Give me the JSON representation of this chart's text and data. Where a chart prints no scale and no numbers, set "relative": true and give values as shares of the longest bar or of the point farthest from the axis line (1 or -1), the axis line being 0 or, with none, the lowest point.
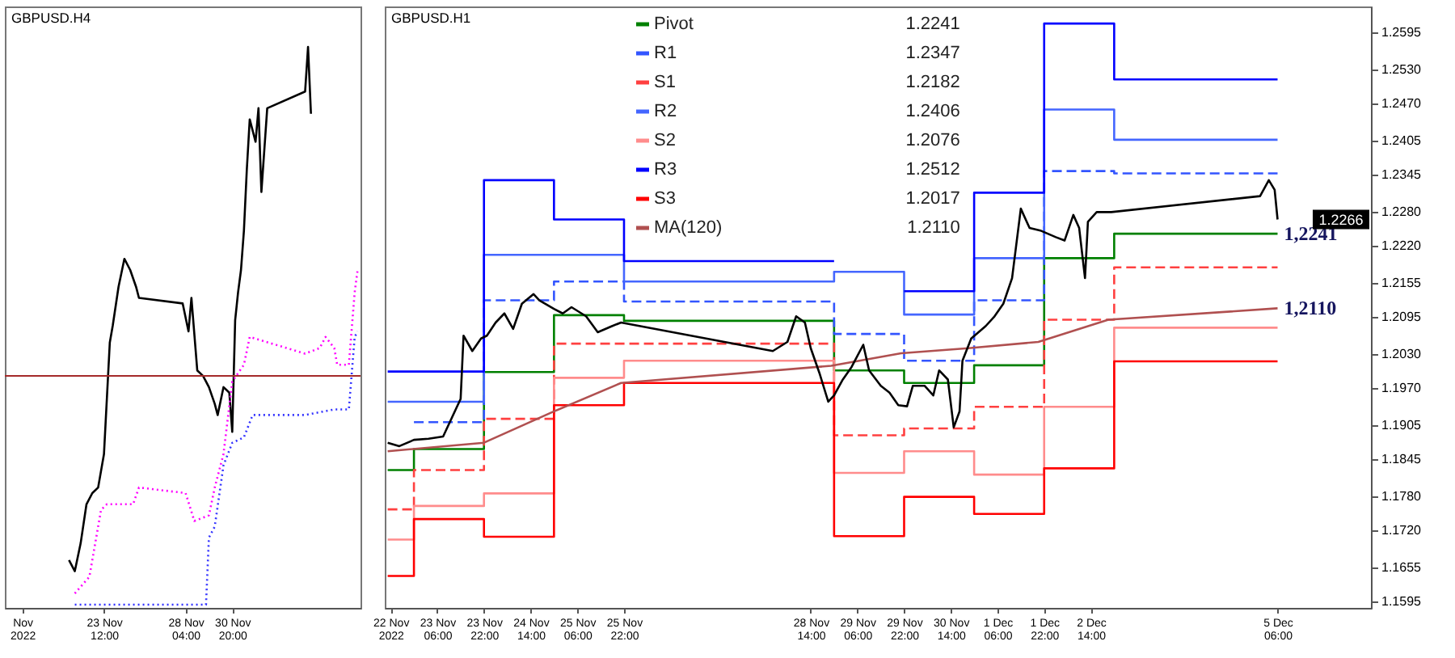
{
  "chart_data": [
    {
      "type": "line",
      "title": "GBPUSD.H4",
      "relative": true,
      "xlim": [
        "2022-11-17T20:00",
        "2022-12-08T04:00"
      ],
      "xticks": [
        {
          "value": "2022-11-18T20:00",
          "label": "Nov 2022"
        },
        {
          "value": "2022-11-23T12:00",
          "label": "23 Nov 12:00"
        },
        {
          "value": "2022-11-28T04:00",
          "label": "28 Nov 04:00"
        },
        {
          "value": "2022-11-30T20:00",
          "label": "30 Nov 20:00"
        }
      ],
      "tick_labels": "x",
      "ref_lines": [
        {
          "axis": "y",
          "value": 0.41,
          "color": "#a52a2a"
        }
      ],
      "series": [
        {
          "color": "#000000",
          "x": [
            "2022-11-21T12:00",
            "2022-11-21T20:00",
            "2022-11-22T04:00",
            "2022-11-22T12:00",
            "2022-11-22T20:00",
            "2022-11-23T04:00",
            "2022-11-23T12:00",
            "2022-11-23T16:00",
            "2022-11-23T20:00",
            "2022-11-24T00:00",
            "2022-11-24T08:00",
            "2022-11-24T16:00",
            "2022-11-25T00:00",
            "2022-11-25T08:00",
            "2022-11-25T12:00",
            "2022-11-28T00:00",
            "2022-11-28T08:00",
            "2022-11-28T12:00",
            "2022-11-28T20:00",
            "2022-11-29T04:00",
            "2022-11-29T12:00",
            "2022-11-29T20:00",
            "2022-11-30T00:00",
            "2022-11-30T08:00",
            "2022-11-30T16:00",
            "2022-11-30T20:00",
            "2022-12-01T00:00",
            "2022-12-01T04:00",
            "2022-12-01T08:00",
            "2022-12-01T12:00",
            "2022-12-01T16:00",
            "2022-12-01T20:00",
            "2022-12-02T04:00",
            "2022-12-02T08:00",
            "2022-12-02T12:00",
            "2022-12-02T20:00",
            "2022-12-05T00:00",
            "2022-12-05T04:00",
            "2022-12-05T08:00"
          ],
          "values": [
            0.08,
            0.06,
            0.11,
            0.18,
            0.2,
            0.21,
            0.27,
            0.37,
            0.47,
            0.5,
            0.57,
            0.62,
            0.6,
            0.57,
            0.55,
            0.54,
            0.49,
            0.55,
            0.42,
            0.41,
            0.39,
            0.36,
            0.34,
            0.39,
            0.38,
            0.31,
            0.51,
            0.56,
            0.6,
            0.67,
            0.78,
            0.87,
            0.83,
            0.89,
            0.74,
            0.89,
            0.92,
            1.0,
            0.88
          ]
        },
        {
          "color": "#ff00ff",
          "line_style": "dotted",
          "x": [
            "2022-11-21T20:00",
            "2022-11-22T16:00",
            "2022-11-23T08:00",
            "2022-11-23T16:00",
            "2022-11-25T04:00",
            "2022-11-25T12:00",
            "2022-11-28T04:00",
            "2022-11-28T16:00",
            "2022-11-29T12:00",
            "2022-11-29T20:00",
            "2022-11-30T08:00",
            "2022-11-30T20:00",
            "2022-12-01T12:00",
            "2022-12-01T20:00",
            "2022-12-05T00:00",
            "2022-12-05T20:00",
            "2022-12-06T04:00",
            "2022-12-06T16:00",
            "2022-12-06T20:00",
            "2022-12-07T12:00",
            "2022-12-07T20:00",
            "2022-12-08T00:00"
          ],
          "values": [
            0.02,
            0.05,
            0.17,
            0.18,
            0.18,
            0.21,
            0.2,
            0.15,
            0.16,
            0.21,
            0.27,
            0.4,
            0.43,
            0.48,
            0.45,
            0.46,
            0.48,
            0.46,
            0.43,
            0.43,
            0.56,
            0.6
          ]
        },
        {
          "color": "#3333ff",
          "line_style": "dotted",
          "x": [
            "2022-11-21T20:00",
            "2022-11-29T08:00",
            "2022-11-29T12:00",
            "2022-11-29T20:00",
            "2022-11-30T08:00",
            "2022-11-30T20:00",
            "2022-12-01T12:00",
            "2022-12-02T00:00",
            "2022-12-05T00:00",
            "2022-12-06T16:00",
            "2022-12-07T12:00",
            "2022-12-07T20:00",
            "2022-12-08T00:00"
          ],
          "values": [
            0,
            0,
            0.12,
            0.14,
            0.25,
            0.29,
            0.3,
            0.34,
            0.34,
            0.35,
            0.35,
            0.48,
            0.49
          ]
        }
      ]
    },
    {
      "type": "line",
      "title": "GBPUSD.H1",
      "xlim": [
        "2022-11-22T12:00",
        "2022-12-06T14:00"
      ],
      "ylim": [
        1.1584,
        1.264
      ],
      "xticks": [
        {
          "value": "2022-11-22T14:00",
          "label": "22 Nov 2022"
        },
        {
          "value": "2022-11-23T06:00",
          "label": "23 Nov 06:00"
        },
        {
          "value": "2022-11-23T22:00",
          "label": "23 Nov 22:00"
        },
        {
          "value": "2022-11-24T14:00",
          "label": "24 Nov 14:00"
        },
        {
          "value": "2022-11-25T06:00",
          "label": "25 Nov 06:00"
        },
        {
          "value": "2022-11-25T22:00",
          "label": "25 Nov 22:00"
        },
        {
          "value": "2022-11-28T14:00",
          "label": "28 Nov 14:00"
        },
        {
          "value": "2022-11-29T06:00",
          "label": "29 Nov 06:00"
        },
        {
          "value": "2022-11-29T22:00",
          "label": "29 Nov 22:00"
        },
        {
          "value": "2022-11-30T14:00",
          "label": "30 Nov 14:00"
        },
        {
          "value": "2022-12-01T06:00",
          "label": "1 Dec 06:00"
        },
        {
          "value": "2022-12-01T22:00",
          "label": "1 Dec 22:00"
        },
        {
          "value": "2022-12-02T14:00",
          "label": "2 Dec 14:00"
        },
        {
          "value": "2022-12-05T06:00",
          "label": "5 Dec 06:00"
        }
      ],
      "yticks": [
        1.2595,
        {
          "value": 1.253,
          "label": "1.2530"
        },
        {
          "value": 1.247,
          "label": "1.2470"
        },
        1.2405,
        1.2345,
        {
          "value": 1.228,
          "label": "1.2280"
        },
        {
          "value": 1.222,
          "label": "1.2220"
        },
        1.2155,
        1.2095,
        {
          "value": 1.203,
          "label": "1.2030"
        },
        {
          "value": 1.197,
          "label": "1.1970"
        },
        1.1905,
        1.1845,
        {
          "value": 1.178,
          "label": "1.1780"
        },
        {
          "value": 1.172,
          "label": "1.1720"
        },
        1.1655,
        1.1595
      ],
      "legend": "top",
      "x": [
        "2022-11-22T13:00",
        "2022-11-22T22:00",
        "2022-11-23T22:00",
        "2022-11-24T22:00",
        "2022-11-25T22:00",
        "2022-11-28T22:00",
        "2022-11-29T22:00",
        "2022-11-30T22:00",
        "2022-12-01T22:00",
        "2022-12-02T22:00",
        "2022-12-05T06:00"
      ],
      "series": [
        {
          "name": "Pivot",
          "type": "step",
          "color": "#008000",
          "values": [
            1.1826,
            1.1863,
            1.1998,
            1.2098,
            1.2088,
            1.2001,
            1.1979,
            1.201,
            1.2198,
            1.2241,
            1.2241
          ]
        },
        {
          "name": "R1",
          "type": "step",
          "color": "#3355ff",
          "line_style": "dashed",
          "values": [
            null,
            1.191,
            1.2124,
            1.2157,
            1.2122,
            1.2065,
            1.2018,
            1.2124,
            1.2351,
            1.2347,
            1.2347
          ]
        },
        {
          "name": "S1",
          "type": "step",
          "color": "#ff4040",
          "line_style": "dashed",
          "values": [
            1.1757,
            1.1826,
            1.1916,
            1.2048,
            1.2048,
            1.1887,
            1.1899,
            1.1937,
            1.209,
            1.2182,
            1.2182
          ]
        },
        {
          "name": "R2",
          "type": "step",
          "color": "#4466ff",
          "values": [
            1.1946,
            1.1946,
            1.2204,
            1.2204,
            1.2157,
            1.2174,
            1.2099,
            1.2198,
            1.2459,
            1.2406,
            1.2406
          ]
        },
        {
          "name": "S2",
          "type": "step",
          "color": "#ff8c8c",
          "values": [
            1.1704,
            1.1763,
            1.1785,
            1.1988,
            1.2018,
            1.1821,
            1.1859,
            1.1818,
            1.1937,
            1.2076,
            1.2076
          ]
        },
        {
          "name": "R3",
          "type": "step",
          "color": "#0000ff",
          "values": [
            1.1999,
            1.1999,
            1.2335,
            1.2266,
            1.2193,
            null,
            1.214,
            1.2313,
            1.261,
            1.2512,
            1.2512
          ]
        },
        {
          "name": "S3",
          "type": "step",
          "color": "#ff0000",
          "values": [
            1.164,
            1.174,
            1.1709,
            1.194,
            1.1979,
            1.171,
            1.1779,
            1.1749,
            1.1829,
            1.2017,
            1.2017
          ]
        },
        {
          "name": "MA(120)",
          "type": "line",
          "color": "#b05050",
          "x": [
            "2022-11-22T13:00",
            "2022-11-23T22:00",
            "2022-11-24T22:00",
            "2022-11-25T21:00",
            "2022-11-28T21:00",
            "2022-11-29T21:00",
            "2022-11-30T20:00",
            "2022-12-01T20:00",
            "2022-12-02T20:00",
            "2022-12-05T06:00"
          ],
          "values": [
            1.1859,
            1.1874,
            1.1929,
            1.1979,
            1.2009,
            1.2031,
            1.204,
            1.2051,
            1.209,
            1.211
          ]
        },
        {
          "type": "line",
          "color": "#000000",
          "x": [
            "2022-11-22T13:00",
            "2022-11-22T17:00",
            "2022-11-22T22:00",
            "2022-11-23T03:00",
            "2022-11-23T08:00",
            "2022-11-23T11:00",
            "2022-11-23T14:00",
            "2022-11-23T15:00",
            "2022-11-23T18:00",
            "2022-11-23T21:00",
            "2022-11-23T23:00",
            "2022-11-24T02:00",
            "2022-11-24T05:00",
            "2022-11-24T08:00",
            "2022-11-24T11:00",
            "2022-11-24T15:00",
            "2022-11-24T17:00",
            "2022-11-24T22:00",
            "2022-11-25T01:00",
            "2022-11-25T04:00",
            "2022-11-25T09:00",
            "2022-11-25T13:00",
            "2022-11-25T18:00",
            "2022-11-25T21:00",
            "2022-11-28T01:00",
            "2022-11-28T06:00",
            "2022-11-28T09:00",
            "2022-11-28T12:00",
            "2022-11-28T14:00",
            "2022-11-28T17:00",
            "2022-11-28T20:00",
            "2022-11-28T22:00",
            "2022-11-29T01:00",
            "2022-11-29T04:00",
            "2022-11-29T08:00",
            "2022-11-29T10:00",
            "2022-11-29T14:00",
            "2022-11-29T17:00",
            "2022-11-29T20:00",
            "2022-11-29T23:00",
            "2022-11-30T01:00",
            "2022-11-30T05:00",
            "2022-11-30T08:00",
            "2022-11-30T10:00",
            "2022-11-30T13:00",
            "2022-11-30T15:00",
            "2022-11-30T17:00",
            "2022-11-30T18:00",
            "2022-11-30T21:00",
            "2022-12-01T02:00",
            "2022-12-01T05:00",
            "2022-12-01T08:00",
            "2022-12-01T11:00",
            "2022-12-01T14:00",
            "2022-12-01T17:00",
            "2022-12-01T21:00",
            "2022-12-02T02:00",
            "2022-12-02T05:00",
            "2022-12-02T08:00",
            "2022-12-02T10:00",
            "2022-12-02T12:00",
            "2022-12-02T13:00",
            "2022-12-02T16:00",
            "2022-12-02T21:00",
            "2022-12-05T00:00",
            "2022-12-05T03:00",
            "2022-12-05T05:00",
            "2022-12-05T06:00"
          ],
          "values": [
            1.1874,
            1.1868,
            1.1879,
            1.1881,
            1.1885,
            1.1918,
            1.1951,
            1.2062,
            1.2035,
            1.2057,
            1.2062,
            1.2085,
            1.2101,
            1.2074,
            1.2118,
            1.2135,
            1.2124,
            1.2109,
            1.2101,
            1.2112,
            1.2096,
            1.2068,
            1.2079,
            1.2085,
            1.2035,
            1.2051,
            1.2096,
            1.2085,
            1.204,
            1.1996,
            1.1946,
            1.1957,
            1.1985,
            1.2007,
            1.2046,
            1.2001,
            1.1974,
            1.1962,
            1.194,
            1.1938,
            1.1974,
            1.1974,
            1.1957,
            1.2001,
            1.1985,
            1.1901,
            1.1929,
            1.2018,
            1.2057,
            1.2079,
            1.2096,
            1.2118,
            1.2163,
            1.2285,
            1.2251,
            1.2246,
            1.2235,
            1.2229,
            1.2274,
            1.2251,
            1.2163,
            1.2262,
            1.2279,
            1.2279,
            1.2307,
            1.2335,
            1.2318,
            1.2266
          ]
        }
      ],
      "annotations": [
        "1.2241",
        "1.2347",
        "1.2182",
        "1.2406",
        "1.2076",
        "1.2512",
        "1.2017",
        "1.2110",
        {
          "text": "1,2241",
          "x": "2022-12-05T06:00",
          "y": 1.2241
        },
        {
          "text": "1,2110",
          "x": "2022-12-05T06:00",
          "y": 1.211
        },
        {
          "text": "1.2266",
          "y": 1.2266
        }
      ]
    }
  ]
}
